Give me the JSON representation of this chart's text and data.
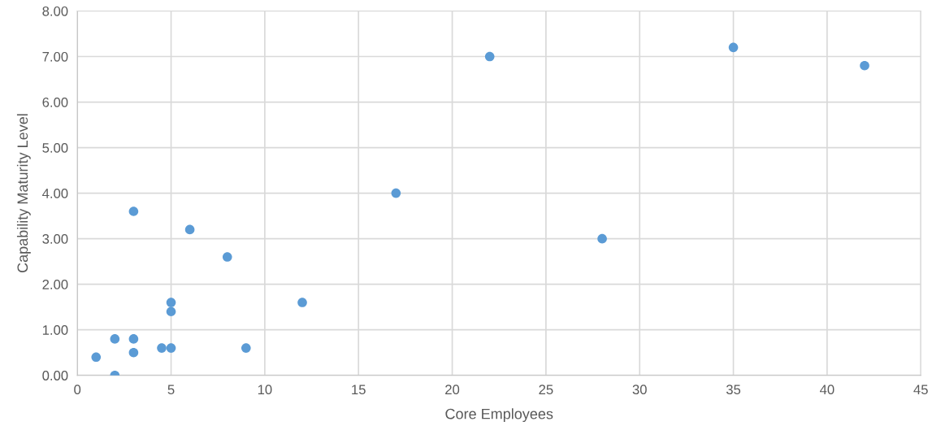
{
  "chart_data": {
    "type": "scatter",
    "xlabel": "Core Employees",
    "ylabel": "Capability Maturity Level",
    "x": [
      1,
      2,
      2,
      3,
      3,
      3,
      4.5,
      5,
      5,
      5,
      6,
      8,
      9,
      12,
      17,
      22,
      28,
      35,
      42
    ],
    "series": [
      {
        "color": "#5b9bd5",
        "values": [
          0.4,
          0.8,
          0,
          0.8,
          0.5,
          3.6,
          0.6,
          0.6,
          1.6,
          1.4,
          3.2,
          2.6,
          0.6,
          1.6,
          4.0,
          7.0,
          3.0,
          7.2,
          6.8
        ]
      }
    ],
    "xlim": [
      0,
      45
    ],
    "xticks": [
      0,
      5,
      10,
      15,
      20,
      25,
      30,
      35,
      40,
      45
    ],
    "ylim": [
      0,
      8
    ],
    "yticks": [
      {
        "value": 0,
        "label": "0.00"
      },
      {
        "value": 1,
        "label": "1.00"
      },
      {
        "value": 2,
        "label": "2.00"
      },
      {
        "value": 3,
        "label": "3.00"
      },
      {
        "value": 4,
        "label": "4.00"
      },
      {
        "value": 5,
        "label": "5.00"
      },
      {
        "value": 6,
        "label": "6.00"
      },
      {
        "value": 7,
        "label": "7.00"
      },
      {
        "value": 8,
        "label": "8.00"
      }
    ],
    "grid": true,
    "marker": "circle"
  }
}
